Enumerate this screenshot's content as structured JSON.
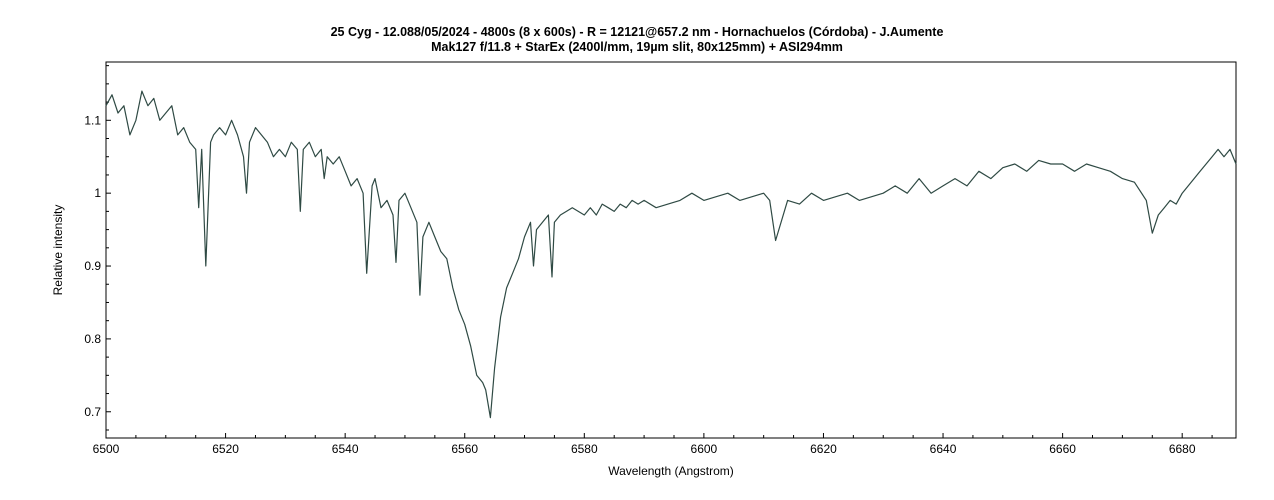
{
  "chart_data": {
    "type": "line",
    "title": "25 Cyg - 12.088/05/2024 - 4800s (8 x 600s) - R = 12121@657.2 nm - Hornachuelos (Córdoba) - J.Aumente",
    "subtitle": "Mak127 f/11.8 + StarEx (2400l/mm, 19µm slit, 80x125mm) + ASI294mm",
    "xlabel": "Wavelength (Angstrom)",
    "ylabel": "Relative intensity",
    "xlim": [
      6500,
      6689
    ],
    "ylim": [
      0.664,
      1.18
    ],
    "xticks": [
      6500,
      6520,
      6540,
      6560,
      6580,
      6600,
      6620,
      6640,
      6660,
      6680
    ],
    "yticks": [
      0.7,
      0.8,
      0.9,
      1.0,
      1.1
    ],
    "ytick_labels": [
      "0.7",
      "0.8",
      "0.9",
      "1",
      "1.1"
    ],
    "grid": false,
    "line_color": "#2f4a44",
    "series": [
      {
        "x": [
          6500,
          6501,
          6502,
          6503,
          6504,
          6505,
          6506,
          6507,
          6508,
          6509,
          6510,
          6511,
          6512,
          6513,
          6514,
          6515,
          6515.5,
          6516,
          6516.7,
          6517.5,
          6518,
          6519,
          6520,
          6521,
          6522,
          6523,
          6523.5,
          6524,
          6525,
          6526,
          6527,
          6528,
          6529,
          6530,
          6531,
          6532,
          6532.5,
          6533,
          6534,
          6535,
          6536,
          6536.5,
          6537,
          6538,
          6539,
          6540,
          6541,
          6542,
          6543,
          6543.6,
          6544.5,
          6545,
          6546,
          6547,
          6548,
          6548.5,
          6549,
          6550,
          6551,
          6552,
          6552.5,
          6553,
          6554,
          6555,
          6556,
          6557,
          6558,
          6559,
          6560,
          6561,
          6562,
          6563,
          6563.5,
          6564.3,
          6565,
          6566,
          6567,
          6568,
          6569,
          6570,
          6571,
          6571.5,
          6572,
          6573,
          6574,
          6574.6,
          6575,
          6576,
          6577,
          6578,
          6579,
          6580,
          6581,
          6582,
          6583,
          6584,
          6585,
          6586,
          6587,
          6588,
          6589,
          6590,
          6592,
          6594,
          6596,
          6598,
          6600,
          6602,
          6604,
          6606,
          6608,
          6610,
          6611,
          6612,
          6614,
          6616,
          6618,
          6620,
          6622,
          6624,
          6626,
          6628,
          6630,
          6632,
          6634,
          6636,
          6638,
          6640,
          6642,
          6644,
          6646,
          6648,
          6650,
          6652,
          6654,
          6656,
          6658,
          6660,
          6662,
          6664,
          6666,
          6668,
          6670,
          6672,
          6674,
          6675,
          6676,
          6677,
          6678,
          6679,
          6680,
          6681,
          6682,
          6683,
          6684,
          6685,
          6686,
          6687,
          6688,
          6689
        ],
        "y": [
          1.12,
          1.135,
          1.11,
          1.12,
          1.08,
          1.1,
          1.14,
          1.12,
          1.13,
          1.1,
          1.11,
          1.12,
          1.08,
          1.09,
          1.07,
          1.06,
          0.98,
          1.06,
          0.9,
          1.07,
          1.08,
          1.09,
          1.08,
          1.1,
          1.08,
          1.05,
          1.0,
          1.07,
          1.09,
          1.08,
          1.07,
          1.05,
          1.06,
          1.05,
          1.07,
          1.06,
          0.975,
          1.06,
          1.07,
          1.05,
          1.06,
          1.02,
          1.05,
          1.04,
          1.05,
          1.03,
          1.01,
          1.02,
          1.0,
          0.89,
          1.01,
          1.02,
          0.98,
          0.99,
          0.97,
          0.905,
          0.99,
          1.0,
          0.98,
          0.96,
          0.86,
          0.94,
          0.96,
          0.94,
          0.92,
          0.91,
          0.87,
          0.84,
          0.82,
          0.79,
          0.75,
          0.74,
          0.73,
          0.692,
          0.76,
          0.83,
          0.87,
          0.89,
          0.91,
          0.94,
          0.96,
          0.9,
          0.95,
          0.96,
          0.97,
          0.885,
          0.96,
          0.97,
          0.975,
          0.98,
          0.975,
          0.97,
          0.98,
          0.97,
          0.985,
          0.98,
          0.975,
          0.985,
          0.98,
          0.99,
          0.985,
          0.99,
          0.98,
          0.985,
          0.99,
          1.0,
          0.99,
          0.995,
          1.0,
          0.99,
          0.995,
          1.0,
          0.99,
          0.935,
          0.99,
          0.985,
          1.0,
          0.99,
          0.995,
          1.0,
          0.99,
          0.995,
          1.0,
          1.01,
          1.0,
          1.02,
          1.0,
          1.01,
          1.02,
          1.01,
          1.03,
          1.02,
          1.035,
          1.04,
          1.03,
          1.045,
          1.04,
          1.04,
          1.03,
          1.04,
          1.035,
          1.03,
          1.02,
          1.015,
          0.99,
          0.945,
          0.97,
          0.98,
          0.99,
          0.985,
          1.0,
          1.01,
          1.02,
          1.03,
          1.04,
          1.05,
          1.06,
          1.05,
          1.06,
          1.04
        ]
      }
    ]
  }
}
